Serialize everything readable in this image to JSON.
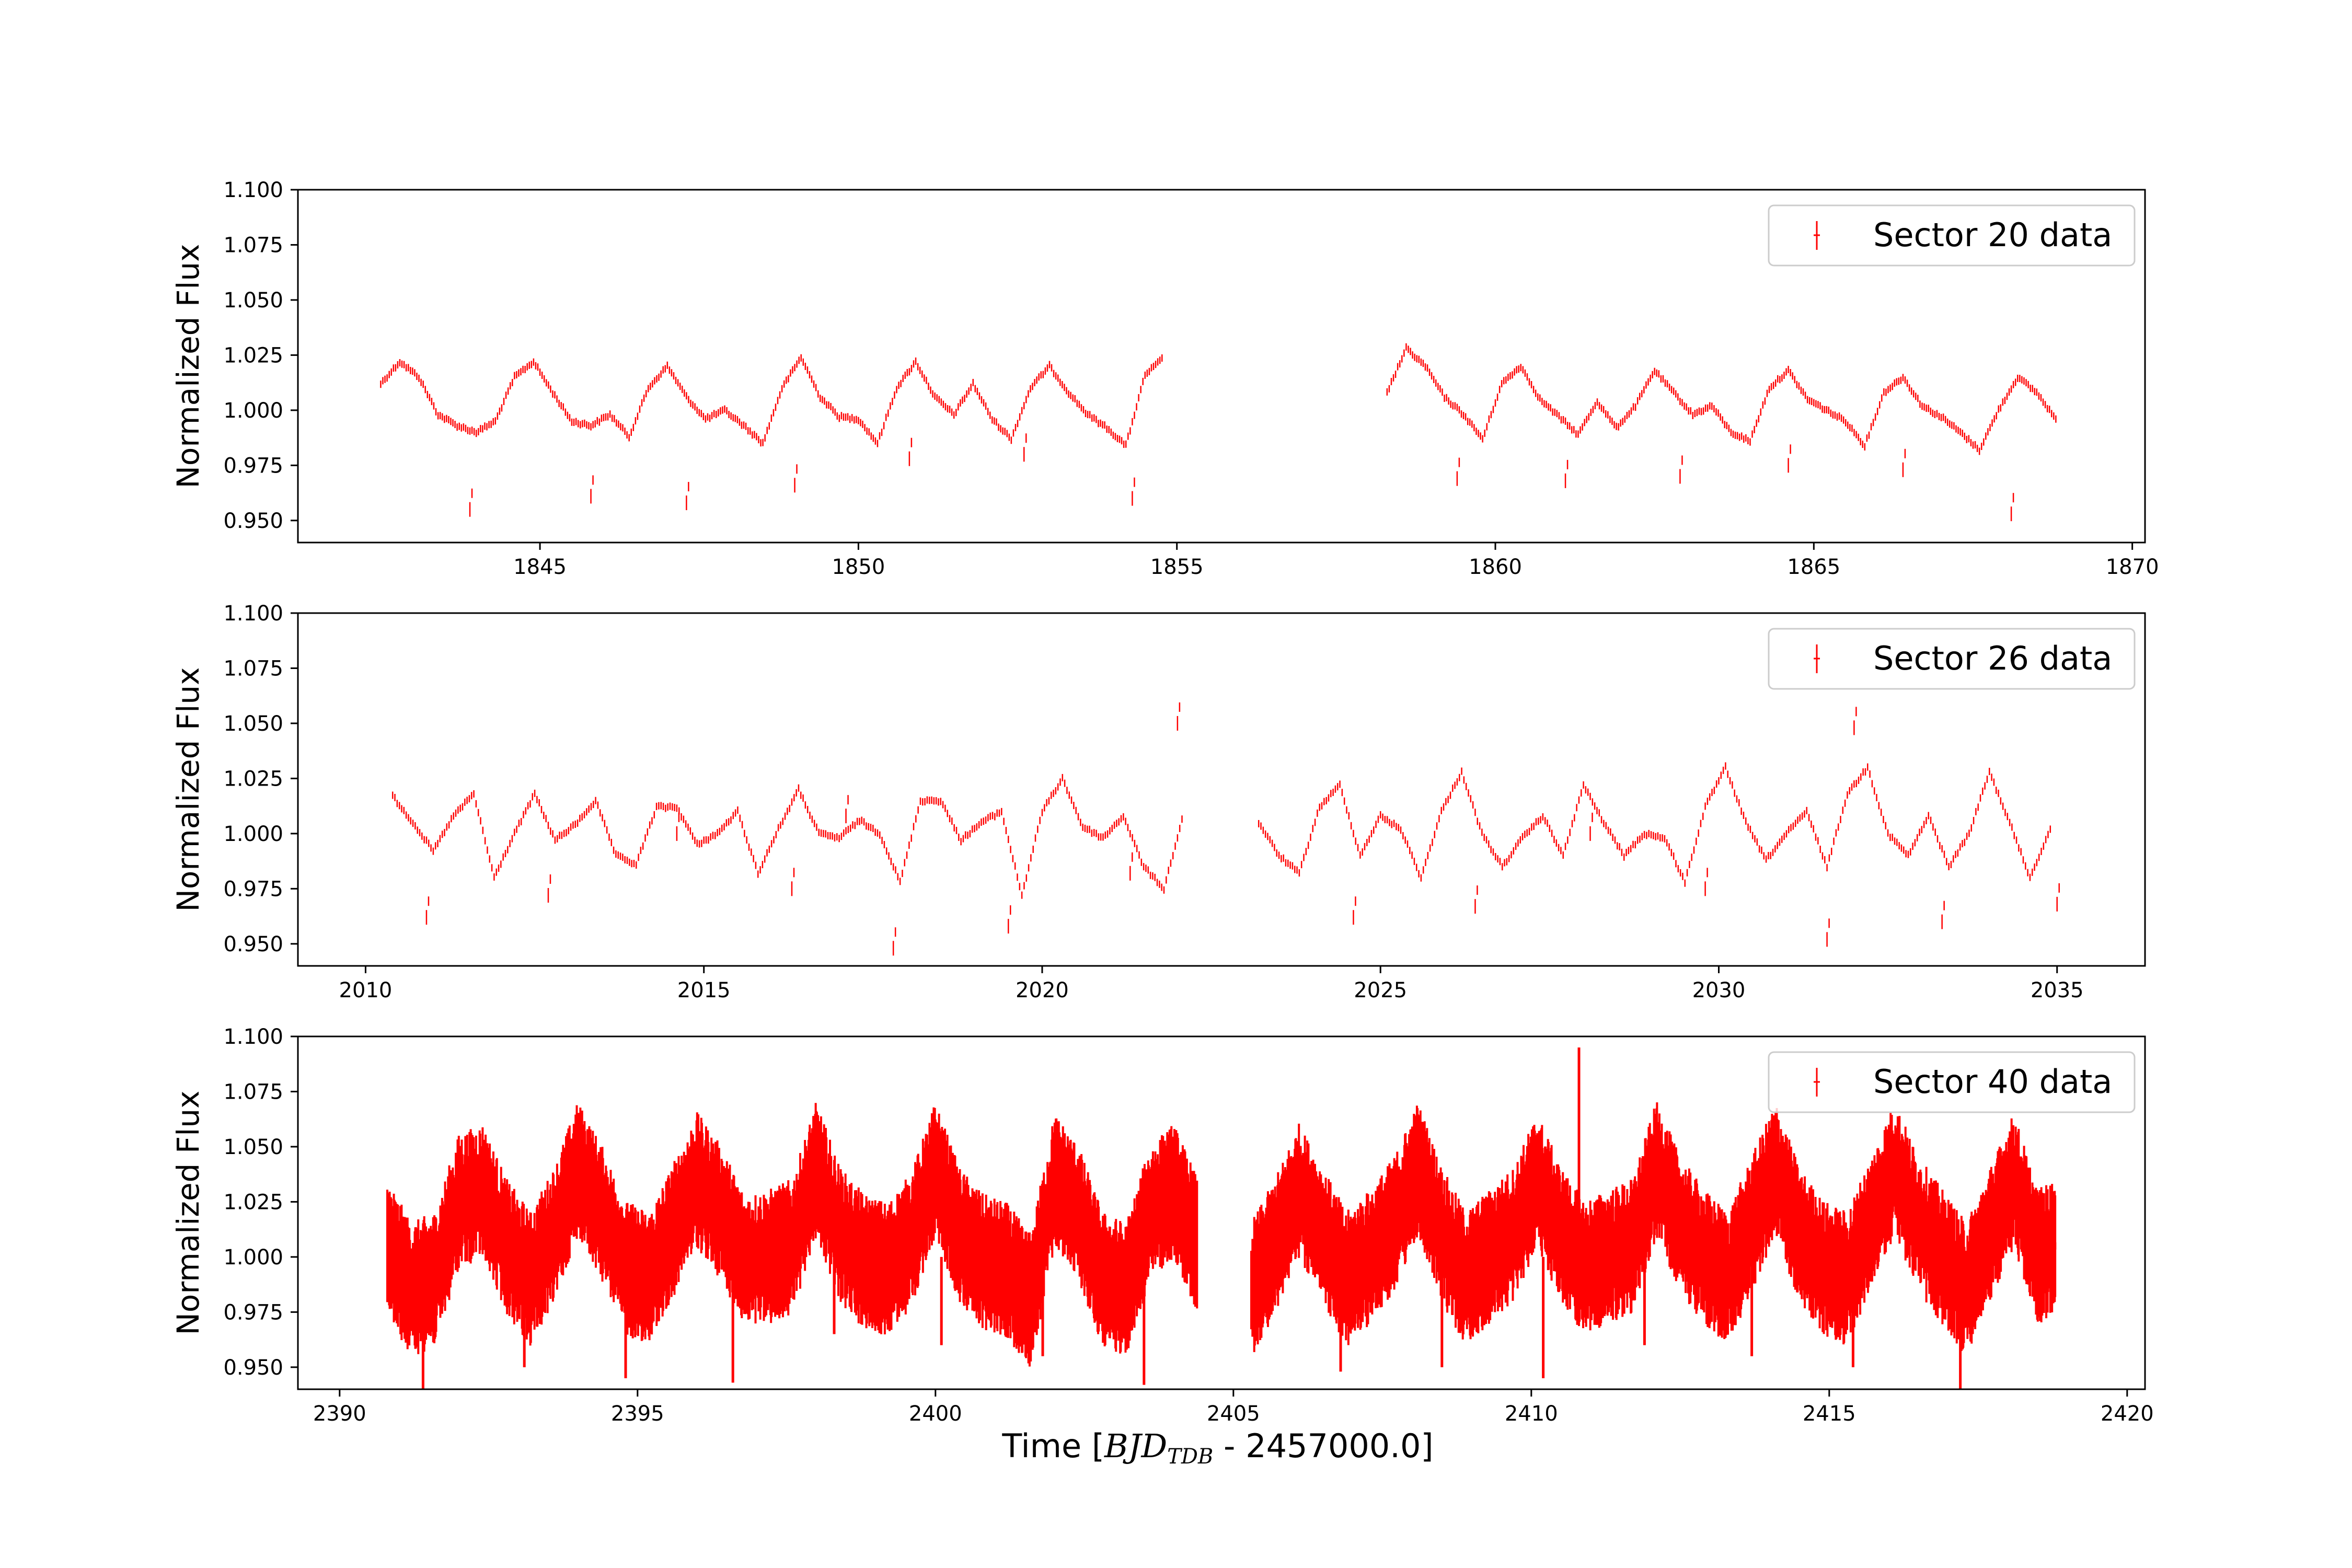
{
  "colors": {
    "data": "#ff0000",
    "axes": "#000000",
    "legend_border": "#cccccc",
    "background": "#ffffff"
  },
  "figure": {
    "xlabel": {
      "prefix": "Time [",
      "var": "BJD",
      "sub": "TDB",
      "suffix": " - 2457000.0]"
    }
  },
  "chart_data": [
    {
      "type": "scatter",
      "title": "",
      "ylabel": "Normalized Flux",
      "xlim": [
        1841.2,
        1870.2
      ],
      "ylim": [
        0.94,
        1.1
      ],
      "xticks": [
        1845,
        1850,
        1855,
        1860,
        1865,
        1870
      ],
      "xtick_labels": [
        "1845",
        "1850",
        "1855",
        "1860",
        "1865",
        "1870"
      ],
      "yticks": [
        0.95,
        0.975,
        1.0,
        1.025,
        1.05,
        1.075,
        1.1
      ],
      "ytick_labels": [
        "0.950",
        "0.975",
        "1.000",
        "1.025",
        "1.050",
        "1.075",
        "1.100"
      ],
      "legend": {
        "label": "Sector 20 data",
        "position": "top-right"
      },
      "series": [
        {
          "name": "Sector 20 data",
          "x": [
            1842.5,
            1842.8,
            1843.1,
            1843.4,
            1843.7,
            1844.0,
            1844.3,
            1844.6,
            1844.9,
            1845.2,
            1845.5,
            1845.8,
            1846.1,
            1846.4,
            1846.7,
            1847.0,
            1847.3,
            1847.6,
            1847.9,
            1848.2,
            1848.5,
            1848.8,
            1849.1,
            1849.4,
            1849.7,
            1850.0,
            1850.3,
            1850.6,
            1850.9,
            1851.2,
            1851.5,
            1851.8,
            1852.1,
            1852.4,
            1852.7,
            1853.0,
            1853.3,
            1853.6,
            1853.9,
            1854.2,
            1854.5,
            1854.8,
            1858.3,
            1858.6,
            1858.9,
            1859.2,
            1859.5,
            1859.8,
            1860.1,
            1860.4,
            1860.7,
            1861.0,
            1861.3,
            1861.6,
            1861.9,
            1862.2,
            1862.5,
            1862.8,
            1863.1,
            1863.4,
            1863.7,
            1864.0,
            1864.3,
            1864.6,
            1864.9,
            1865.2,
            1865.5,
            1865.8,
            1866.1,
            1866.4,
            1866.7,
            1867.0,
            1867.3,
            1867.6,
            1867.9,
            1868.2,
            1868.5,
            1868.8
          ],
          "y": [
            1.012,
            1.022,
            1.015,
            0.998,
            0.993,
            0.99,
            0.995,
            1.015,
            1.022,
            1.008,
            0.995,
            0.993,
            0.998,
            0.988,
            1.01,
            1.02,
            1.006,
            0.996,
            1.0,
            0.993,
            0.985,
            1.01,
            1.024,
            1.006,
            0.997,
            0.996,
            0.985,
            1.01,
            1.022,
            1.006,
            0.998,
            1.012,
            0.996,
            0.987,
            1.01,
            1.02,
            1.008,
            0.998,
            0.992,
            0.984,
            1.016,
            1.024,
            1.008,
            1.028,
            1.02,
            1.006,
            0.998,
            0.987,
            1.012,
            1.02,
            1.005,
            0.997,
            0.989,
            1.004,
            0.992,
            1.002,
            1.018,
            1.008,
            0.998,
            1.002,
            0.99,
            0.986,
            1.01,
            1.018,
            1.005,
            1.0,
            0.995,
            0.984,
            1.008,
            1.015,
            1.002,
            0.997,
            0.99,
            0.982,
            1.0,
            1.015,
            1.008,
            0.996
          ],
          "dips_x": [
            1843.9,
            1845.8,
            1847.3,
            1849.0,
            1850.8,
            1852.6,
            1854.3,
            1859.4,
            1861.1,
            1862.9,
            1864.6,
            1866.4,
            1868.1
          ],
          "dips_y": [
            0.955,
            0.961,
            0.958,
            0.966,
            0.978,
            0.98,
            0.96,
            0.969,
            0.968,
            0.97,
            0.975,
            0.973,
            0.953
          ]
        }
      ]
    },
    {
      "type": "scatter",
      "title": "",
      "ylabel": "Normalized Flux",
      "xlim": [
        2009.0,
        2036.3
      ],
      "ylim": [
        0.94,
        1.1
      ],
      "xticks": [
        2010,
        2015,
        2020,
        2025,
        2030,
        2035
      ],
      "xtick_labels": [
        "2010",
        "2015",
        "2020",
        "2025",
        "2030",
        "2035"
      ],
      "yticks": [
        0.95,
        0.975,
        1.0,
        1.025,
        1.05,
        1.075,
        1.1
      ],
      "ytick_labels": [
        "0.950",
        "0.975",
        "1.000",
        "1.025",
        "1.050",
        "1.075",
        "1.100"
      ],
      "legend": {
        "label": "Sector 26 data",
        "position": "top-right"
      },
      "series": [
        {
          "name": "Sector 26 data",
          "x": [
            2010.4,
            2010.7,
            2011.0,
            2011.3,
            2011.6,
            2011.9,
            2012.2,
            2012.5,
            2012.8,
            2013.1,
            2013.4,
            2013.7,
            2014.0,
            2014.3,
            2014.6,
            2014.9,
            2015.2,
            2015.5,
            2015.8,
            2016.1,
            2016.4,
            2016.7,
            2017.0,
            2017.3,
            2017.6,
            2017.9,
            2018.2,
            2018.5,
            2018.8,
            2019.1,
            2019.4,
            2019.7,
            2020.0,
            2020.3,
            2020.6,
            2020.9,
            2021.2,
            2021.5,
            2021.8,
            2022.1,
            2023.2,
            2023.5,
            2023.8,
            2024.1,
            2024.4,
            2024.7,
            2025.0,
            2025.3,
            2025.6,
            2025.9,
            2026.2,
            2026.5,
            2026.8,
            2027.1,
            2027.4,
            2027.7,
            2028.0,
            2028.3,
            2028.6,
            2028.9,
            2029.2,
            2029.5,
            2029.8,
            2030.1,
            2030.4,
            2030.7,
            2031.0,
            2031.3,
            2031.6,
            2031.9,
            2032.2,
            2032.5,
            2032.8,
            2033.1,
            2033.4,
            2033.7,
            2034.0,
            2034.3,
            2034.6,
            2034.9
          ],
          "y": [
            1.017,
            1.005,
            0.992,
            1.008,
            1.018,
            0.98,
            1.0,
            1.018,
            0.997,
            1.004,
            1.015,
            0.99,
            0.986,
            1.012,
            1.012,
            0.995,
            1.0,
            1.01,
            0.982,
            1.002,
            1.02,
            1.0,
            0.998,
            1.006,
            1.0,
            0.978,
            1.015,
            1.015,
            0.997,
            1.005,
            1.01,
            0.972,
            1.01,
            1.025,
            1.003,
            0.998,
            1.008,
            0.985,
            0.975,
            1.01,
            1.005,
            0.99,
            0.982,
            1.012,
            1.022,
            0.99,
            1.008,
            1.002,
            0.98,
            1.01,
            1.028,
            1.0,
            0.985,
            0.998,
            1.008,
            0.99,
            1.022,
            1.005,
            0.99,
            1.0,
            0.998,
            0.978,
            1.012,
            1.03,
            1.005,
            0.988,
            1.0,
            1.01,
            0.985,
            1.018,
            1.03,
            1.0,
            0.99,
            1.008,
            0.985,
            1.0,
            1.028,
            1.005,
            0.98,
            1.002
          ],
          "dips_x": [
            2010.9,
            2012.7,
            2014.6,
            2016.3,
            2017.1,
            2017.8,
            2019.5,
            2021.3,
            2022.0,
            2024.6,
            2026.4,
            2028.1,
            2029.8,
            2031.6,
            2032.0,
            2033.3,
            2035.0
          ],
          "dips_y": [
            0.962,
            0.972,
            1.0,
            0.975,
            1.008,
            0.948,
            0.958,
            0.982,
            1.05,
            0.962,
            0.967,
            1.0,
            0.975,
            0.952,
            1.048,
            0.96,
            0.968
          ]
        }
      ]
    },
    {
      "type": "scatter",
      "title": "",
      "ylabel": "Normalized Flux",
      "xlim": [
        2389.3,
        2420.3
      ],
      "ylim": [
        0.94,
        1.1
      ],
      "xticks": [
        2390,
        2395,
        2400,
        2405,
        2410,
        2415,
        2420
      ],
      "xtick_labels": [
        "2390",
        "2395",
        "2400",
        "2405",
        "2410",
        "2415",
        "2420"
      ],
      "yticks": [
        0.95,
        0.975,
        1.0,
        1.025,
        1.05,
        1.075,
        1.1
      ],
      "ytick_labels": [
        "0.950",
        "0.975",
        "1.000",
        "1.025",
        "1.050",
        "1.075",
        "1.100"
      ],
      "legend": {
        "label": "Sector 40 data",
        "position": "top-right"
      },
      "series": [
        {
          "name": "Sector 40 data",
          "x": [
            2390.8,
            2391.2,
            2391.6,
            2392.0,
            2392.4,
            2392.8,
            2393.2,
            2393.6,
            2394.0,
            2394.4,
            2394.8,
            2395.2,
            2395.6,
            2396.0,
            2396.4,
            2396.8,
            2397.2,
            2397.6,
            2398.0,
            2398.4,
            2398.8,
            2399.2,
            2399.6,
            2400.0,
            2400.4,
            2400.8,
            2401.2,
            2401.6,
            2402.0,
            2402.4,
            2402.8,
            2403.2,
            2403.6,
            2404.0,
            2404.4,
            2405.3,
            2405.7,
            2406.1,
            2406.5,
            2406.9,
            2407.3,
            2407.7,
            2408.1,
            2408.5,
            2408.9,
            2409.3,
            2409.7,
            2410.1,
            2410.5,
            2410.9,
            2411.3,
            2411.7,
            2412.1,
            2412.5,
            2412.9,
            2413.3,
            2413.7,
            2414.1,
            2414.5,
            2414.9,
            2415.3,
            2415.7,
            2416.1,
            2416.5,
            2416.9,
            2417.3,
            2417.7,
            2418.1,
            2418.5,
            2418.8
          ],
          "y": [
            1.005,
            0.985,
            0.99,
            1.025,
            1.03,
            1.005,
            0.99,
            1.01,
            1.04,
            1.02,
            0.995,
            0.99,
            1.012,
            1.035,
            1.02,
            0.998,
            1.0,
            1.005,
            1.04,
            1.01,
            0.998,
            0.994,
            1.008,
            1.04,
            1.01,
            0.998,
            0.994,
            0.98,
            1.035,
            1.02,
            0.99,
            0.985,
            1.02,
            1.03,
            1.005,
            0.985,
            1.005,
            1.03,
            1.01,
            0.99,
            1.0,
            1.015,
            1.04,
            1.01,
            0.99,
            1.0,
            1.01,
            1.035,
            1.01,
            0.995,
            1.0,
            1.005,
            1.04,
            1.015,
            1.0,
            0.99,
            1.015,
            1.04,
            1.01,
            0.995,
            0.99,
            1.015,
            1.04,
            1.015,
            1.0,
            0.985,
            1.01,
            1.035,
            1.0,
            1.005
          ],
          "spread": 0.022,
          "dips_x": [
            2391.4,
            2393.1,
            2394.8,
            2396.6,
            2398.3,
            2400.1,
            2401.8,
            2403.5,
            2406.8,
            2408.5,
            2410.2,
            2410.8,
            2411.9,
            2413.7,
            2415.4,
            2417.2
          ],
          "dips_y": [
            0.94,
            0.95,
            0.945,
            0.943,
            0.965,
            0.96,
            0.955,
            0.942,
            0.948,
            0.95,
            0.945,
            1.095,
            0.96,
            0.955,
            0.95,
            0.94
          ]
        }
      ]
    }
  ]
}
